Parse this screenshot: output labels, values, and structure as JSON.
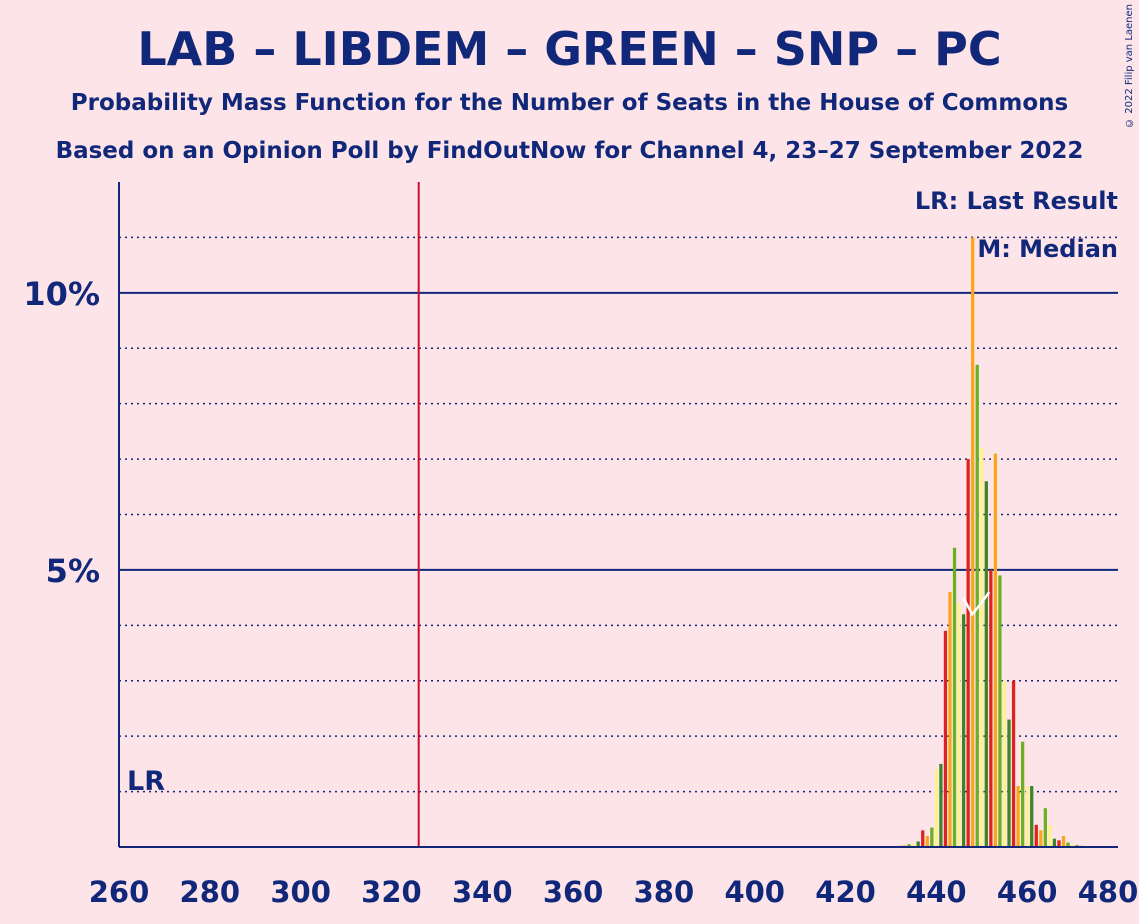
{
  "header": {
    "title": "LAB – LIBDEM – GREEN – SNP – PC",
    "subtitle": "Probability Mass Function for the Number of Seats in the House of Commons",
    "source": "Based on an Opinion Poll by FindOutNow for Channel 4, 23–27 September 2022",
    "copyright": "© 2022 Filip van Laenen"
  },
  "legend": {
    "last_result": "LR: Last Result",
    "median": "M: Median",
    "lr_marker": "LR"
  },
  "colors": {
    "background": "#fde4e8",
    "text": "#11287a",
    "majority_line": "#c8102e",
    "bar_colors": [
      "#dc241f",
      "#faa61a",
      "#6ab023",
      "#fdf38e",
      "#3f8428"
    ]
  },
  "chart_data": {
    "type": "bar",
    "xlim": [
      260,
      480
    ],
    "ylim": [
      0,
      12
    ],
    "x_ticks": [
      260,
      280,
      300,
      320,
      340,
      360,
      380,
      400,
      420,
      440,
      460,
      480
    ],
    "y_ticks": [
      {
        "value": 5,
        "label": "5%"
      },
      {
        "value": 10,
        "label": "10%"
      }
    ],
    "y_minor_gridlines": [
      1,
      2,
      3,
      4,
      6,
      7,
      8,
      9,
      11
    ],
    "majority_line_x": 326,
    "last_result_x": 262,
    "median_x": 449,
    "ylabel_unit": "%",
    "x": [
      432,
      433,
      434,
      435,
      436,
      437,
      438,
      439,
      440,
      441,
      442,
      443,
      444,
      445,
      446,
      447,
      448,
      449,
      450,
      451,
      452,
      453,
      454,
      455,
      456,
      457,
      458,
      459,
      460,
      461,
      462,
      463,
      464,
      465,
      466,
      467,
      468,
      469,
      470,
      471,
      472,
      473,
      474
    ],
    "values": [
      0.02,
      0.03,
      0.05,
      0.06,
      0.1,
      0.3,
      0.2,
      0.35,
      1.4,
      1.5,
      3.9,
      4.6,
      5.4,
      4.4,
      4.2,
      7.0,
      11.0,
      8.7,
      7.2,
      6.6,
      5.0,
      7.1,
      4.9,
      3.0,
      2.3,
      3.0,
      1.1,
      1.9,
      1.1,
      1.1,
      0.4,
      0.3,
      0.7,
      0.4,
      0.15,
      0.12,
      0.2,
      0.08,
      0.05,
      0.03,
      0.02,
      0.01,
      0.01
    ]
  }
}
